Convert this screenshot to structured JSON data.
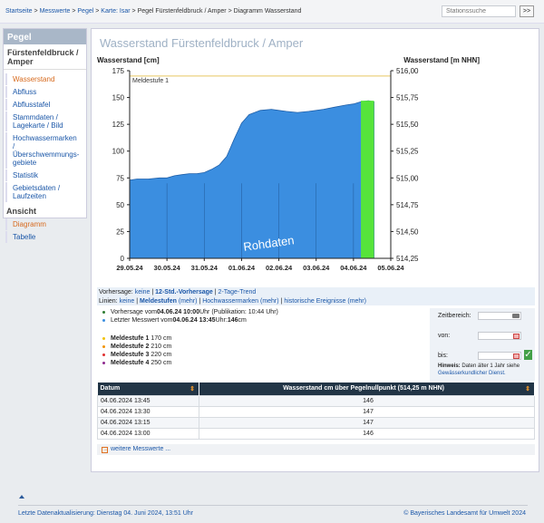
{
  "breadcrumb": [
    "Startseite",
    "Messwerte",
    "Pegel",
    "Karte: Isar",
    "Pegel Fürstenfeldbruck / Amper",
    "Diagramm Wasserstand"
  ],
  "search": {
    "placeholder": "Stationssuche",
    "button": ">>"
  },
  "sidebar": {
    "header": "Pegel",
    "station": "Fürstenfeldbruck / Amper",
    "items": [
      "Wasserstand",
      "Abfluss",
      "Abflusstafel",
      "Stammdaten / Lagekarte / Bild",
      "Hochwassermarken / Überschwemmungs-gebiete",
      "Statistik",
      "Gebietsdaten / Laufzeiten"
    ],
    "ansicht_title": "Ansicht",
    "ansicht_items": [
      "Diagramm",
      "Tabelle"
    ]
  },
  "page_title": "Wasserstand Fürstenfeldbruck / Amper",
  "chart_data": {
    "type": "area",
    "title_left": "Wasserstand [cm]",
    "title_right": "Wasserstand [m NHN]",
    "ylim": [
      0,
      175
    ],
    "yticks": [
      0,
      25,
      50,
      75,
      100,
      125,
      150,
      175
    ],
    "yticks_right": [
      "514,25",
      "514,50",
      "514,75",
      "515,00",
      "515,25",
      "515,50",
      "515,75",
      "516,00"
    ],
    "xticks": [
      "29.05.24",
      "30.05.24",
      "31.05.24",
      "01.06.24",
      "02.06.24",
      "03.06.24",
      "04.06.24",
      "05.06.24"
    ],
    "x_days": [
      0,
      1,
      2,
      3,
      4,
      5,
      6,
      7
    ],
    "series": [
      {
        "x": [
          0,
          0.2,
          0.5,
          0.8,
          1.0,
          1.2,
          1.4,
          1.6,
          1.8,
          2.0,
          2.2,
          2.4,
          2.6,
          2.8,
          3.0,
          3.2,
          3.5,
          3.8,
          4.0,
          4.2,
          4.5,
          4.8,
          5.0,
          5.2,
          5.5,
          5.8,
          6.0,
          6.2,
          6.4,
          6.55
        ],
        "y": [
          73,
          74,
          74,
          75,
          75,
          77,
          78,
          79,
          79,
          80,
          83,
          87,
          95,
          111,
          126,
          134,
          138,
          139,
          138,
          137,
          136,
          137,
          138,
          139,
          141,
          143,
          144,
          146,
          147,
          146
        ]
      }
    ],
    "forecast_band": [
      6.2,
      6.55
    ],
    "threshold": {
      "label": "Meldestufe 1",
      "value": 170
    },
    "watermark": "Rohdaten",
    "colors": {
      "fill": "#3b8ee0",
      "forecast": "#56e43a",
      "threshold": "#e8c862"
    }
  },
  "info": {
    "vorhersage_label": "Vorhersage:",
    "vorhersage_opts": [
      "keine",
      "12-Std.-Vorhersage",
      "2-Tage-Trend"
    ],
    "linien_label": "Linien:",
    "linien_opts": [
      "keine",
      "Meldestufen",
      "(mehr)",
      "Hochwassermarken (mehr)",
      "historische Ereignisse (mehr)"
    ]
  },
  "bullets": [
    {
      "pre": "Vorhersage vom ",
      "bold": "04.06.24 10:00",
      "post": " Uhr (Publikation: 10:44 Uhr)",
      "color": "#2e7d32"
    },
    {
      "pre": "Letzter Messwert vom ",
      "bold": "04.06.24 13:45",
      "post": " Uhr: ",
      "bold2": "146",
      "post2": " cm",
      "color": "#3b8ee0"
    }
  ],
  "levels": [
    {
      "label": "Meldestufe 1",
      "value": "170 cm",
      "color": "#f2c200"
    },
    {
      "label": "Meldestufe 2",
      "value": "210 cm",
      "color": "#f29200"
    },
    {
      "label": "Meldestufe 3",
      "value": "220 cm",
      "color": "#e03030"
    },
    {
      "label": "Meldestufe 4",
      "value": "250 cm",
      "color": "#8e2a8e"
    }
  ],
  "timebox": {
    "zeitbereich": "Zeitbereich:",
    "von": "von:",
    "bis": "bis:",
    "hint_bold": "Hinweis:",
    "hint": " Daten älter 1 Jahr siehe ",
    "hint_link": "Gewässerkundlicher Dienst."
  },
  "table": {
    "headers": [
      "Datum",
      "Wasserstand cm über Pegelnullpunkt (514,25 m NHN)"
    ],
    "rows": [
      [
        "04.06.2024 13:45",
        "146"
      ],
      [
        "04.06.2024 13:30",
        "147"
      ],
      [
        "04.06.2024 13:15",
        "147"
      ],
      [
        "04.06.2024 13:00",
        "146"
      ]
    ]
  },
  "more_link": "weitere Messwerte ...",
  "footer": {
    "left": "Letzte Datenaktualisierung: Dienstag 04. Juni 2024, 13:51 Uhr",
    "right": "© Bayerisches Landesamt für Umwelt 2024"
  }
}
